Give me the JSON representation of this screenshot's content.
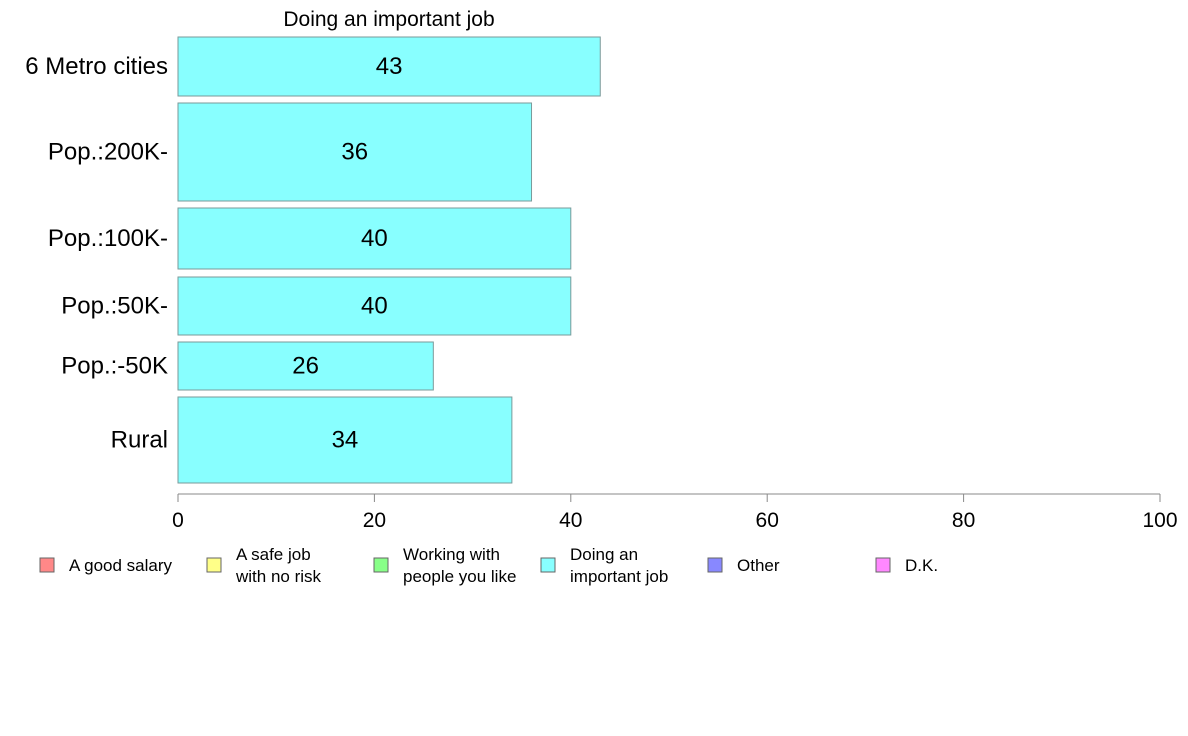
{
  "chart_data": {
    "type": "bar",
    "orientation": "horizontal",
    "title": "Doing an important job",
    "categories": [
      "6 Metro cities",
      "Pop.:200K-",
      "Pop.:100K-",
      "Pop.:50K-",
      "Pop.:-50K",
      "Rural"
    ],
    "values": [
      43,
      36,
      40,
      40,
      26,
      34
    ],
    "value_labels": [
      "43",
      "36",
      "40",
      "40",
      "26",
      "34"
    ],
    "xlim": [
      0,
      100
    ],
    "xticks": [
      0,
      20,
      40,
      60,
      80,
      100
    ],
    "xlabel": "",
    "ylabel": "",
    "bar_color": "#88ffff",
    "grid": false,
    "legend_position": "bottom",
    "legend": [
      {
        "label": [
          "A good salary"
        ],
        "color": "#ff8888"
      },
      {
        "label": [
          "A safe job",
          "with no risk"
        ],
        "color": "#ffff88"
      },
      {
        "label": [
          "Working with",
          "people you like"
        ],
        "color": "#88ff88"
      },
      {
        "label": [
          "Doing an",
          "important job"
        ],
        "color": "#88ffff"
      },
      {
        "label": [
          "Other"
        ],
        "color": "#8888ff"
      },
      {
        "label": [
          "D.K."
        ],
        "color": "#ff88ff"
      }
    ]
  }
}
